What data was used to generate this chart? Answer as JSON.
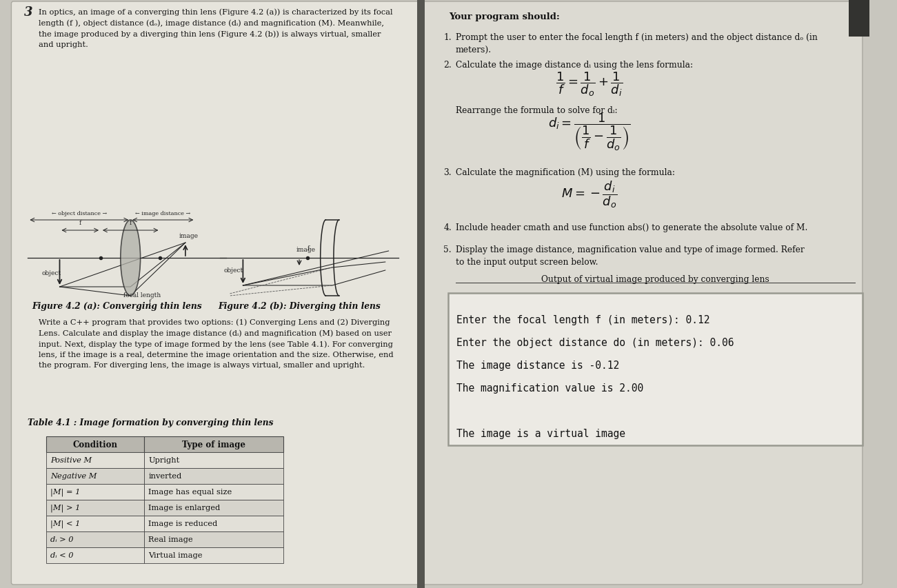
{
  "bg_color": "#c8c6be",
  "page_bg_left": "#e6e4dc",
  "page_bg_right": "#dcdad2",
  "title_number": "3",
  "left_text_intro": "In optics, an image of a converging thin lens (Figure 4.2 (a)) is characterized by its focal\nlength (f ), object distance (dₒ), image distance (dᵢ) and magnification (M). Meanwhile,\nthe image produced by a diverging thin lens (Figure 4.2 (b)) is always virtual, smaller\nand upright.",
  "fig_caption_a": "Figure 4.2 (a): Converging thin lens",
  "fig_caption_b": "Figure 4.2 (b): Diverging thin lens",
  "write_paragraph": "Write a C++ program that provides two options: (1) Converging Lens and (2) Diverging\nLens. Calculate and display the image distance (dᵢ) and magnification (M) based on user\ninput. Next, display the type of image formed by the lens (see Table 4.1). For converging\nlens, if the image is a real, determine the image orientation and the size. Otherwise, end\nthe program. For diverging lens, the image is always virtual, smaller and upright.",
  "table_title": "Table 4.1 : Image formation by converging thin lens",
  "table_conditions": [
    "Positive M",
    "Negative M",
    "|M| = 1",
    "|M| > 1",
    "|M| < 1",
    "dᵢ > 0",
    "dᵢ < 0"
  ],
  "table_types": [
    "Upright",
    "inverted",
    "Image has equal size",
    "Image is enlarged",
    "Image is reduced",
    "Real image",
    "Virtual image"
  ],
  "right_header": "Your program should:",
  "output_label": "Output of virtual image produced by converging lens",
  "output_lines": [
    "Enter the focal length f (in meters): 0.12",
    "Enter the object distance do (in meters): 0.06",
    "The image distance is -0.12",
    "The magnification value is 2.00",
    "",
    "The image is a virtual image"
  ],
  "output_box_bg": "#eceae4",
  "output_box_border": "#999990"
}
